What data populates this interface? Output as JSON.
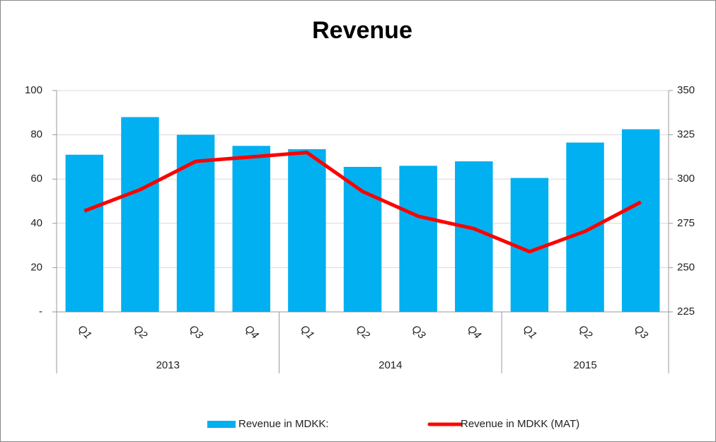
{
  "chart_data": {
    "type": "bar-line",
    "title": "Revenue",
    "groups": [
      {
        "name": "2013",
        "categories": [
          "Q1",
          "Q2",
          "Q3",
          "Q4"
        ]
      },
      {
        "name": "2014",
        "categories": [
          "Q1",
          "Q2",
          "Q3",
          "Q4"
        ]
      },
      {
        "name": "2015",
        "categories": [
          "Q1",
          "Q2",
          "Q3"
        ]
      }
    ],
    "series": [
      {
        "name": "Revenue in MDKK:",
        "type": "bar",
        "color": "#00b0f0",
        "axis": "y",
        "values": [
          71,
          88,
          80,
          75,
          73.5,
          65.5,
          66,
          68,
          60.5,
          76.5,
          82.5
        ]
      },
      {
        "name": "Revenue in MDKK (MAT)",
        "type": "line",
        "color": "#ff0000",
        "axis": "y2",
        "values": [
          282,
          294,
          310,
          312.5,
          315,
          293,
          279,
          272,
          259,
          270.5,
          287
        ]
      }
    ],
    "ylim": [
      0,
      100
    ],
    "yticks": [
      {
        "value": 0,
        "label": "-"
      },
      20,
      40,
      60,
      80,
      100
    ],
    "y2lim": [
      225,
      350
    ],
    "y2ticks": [
      225,
      250,
      275,
      300,
      325,
      350
    ],
    "grid": true,
    "legend": "bottom"
  }
}
